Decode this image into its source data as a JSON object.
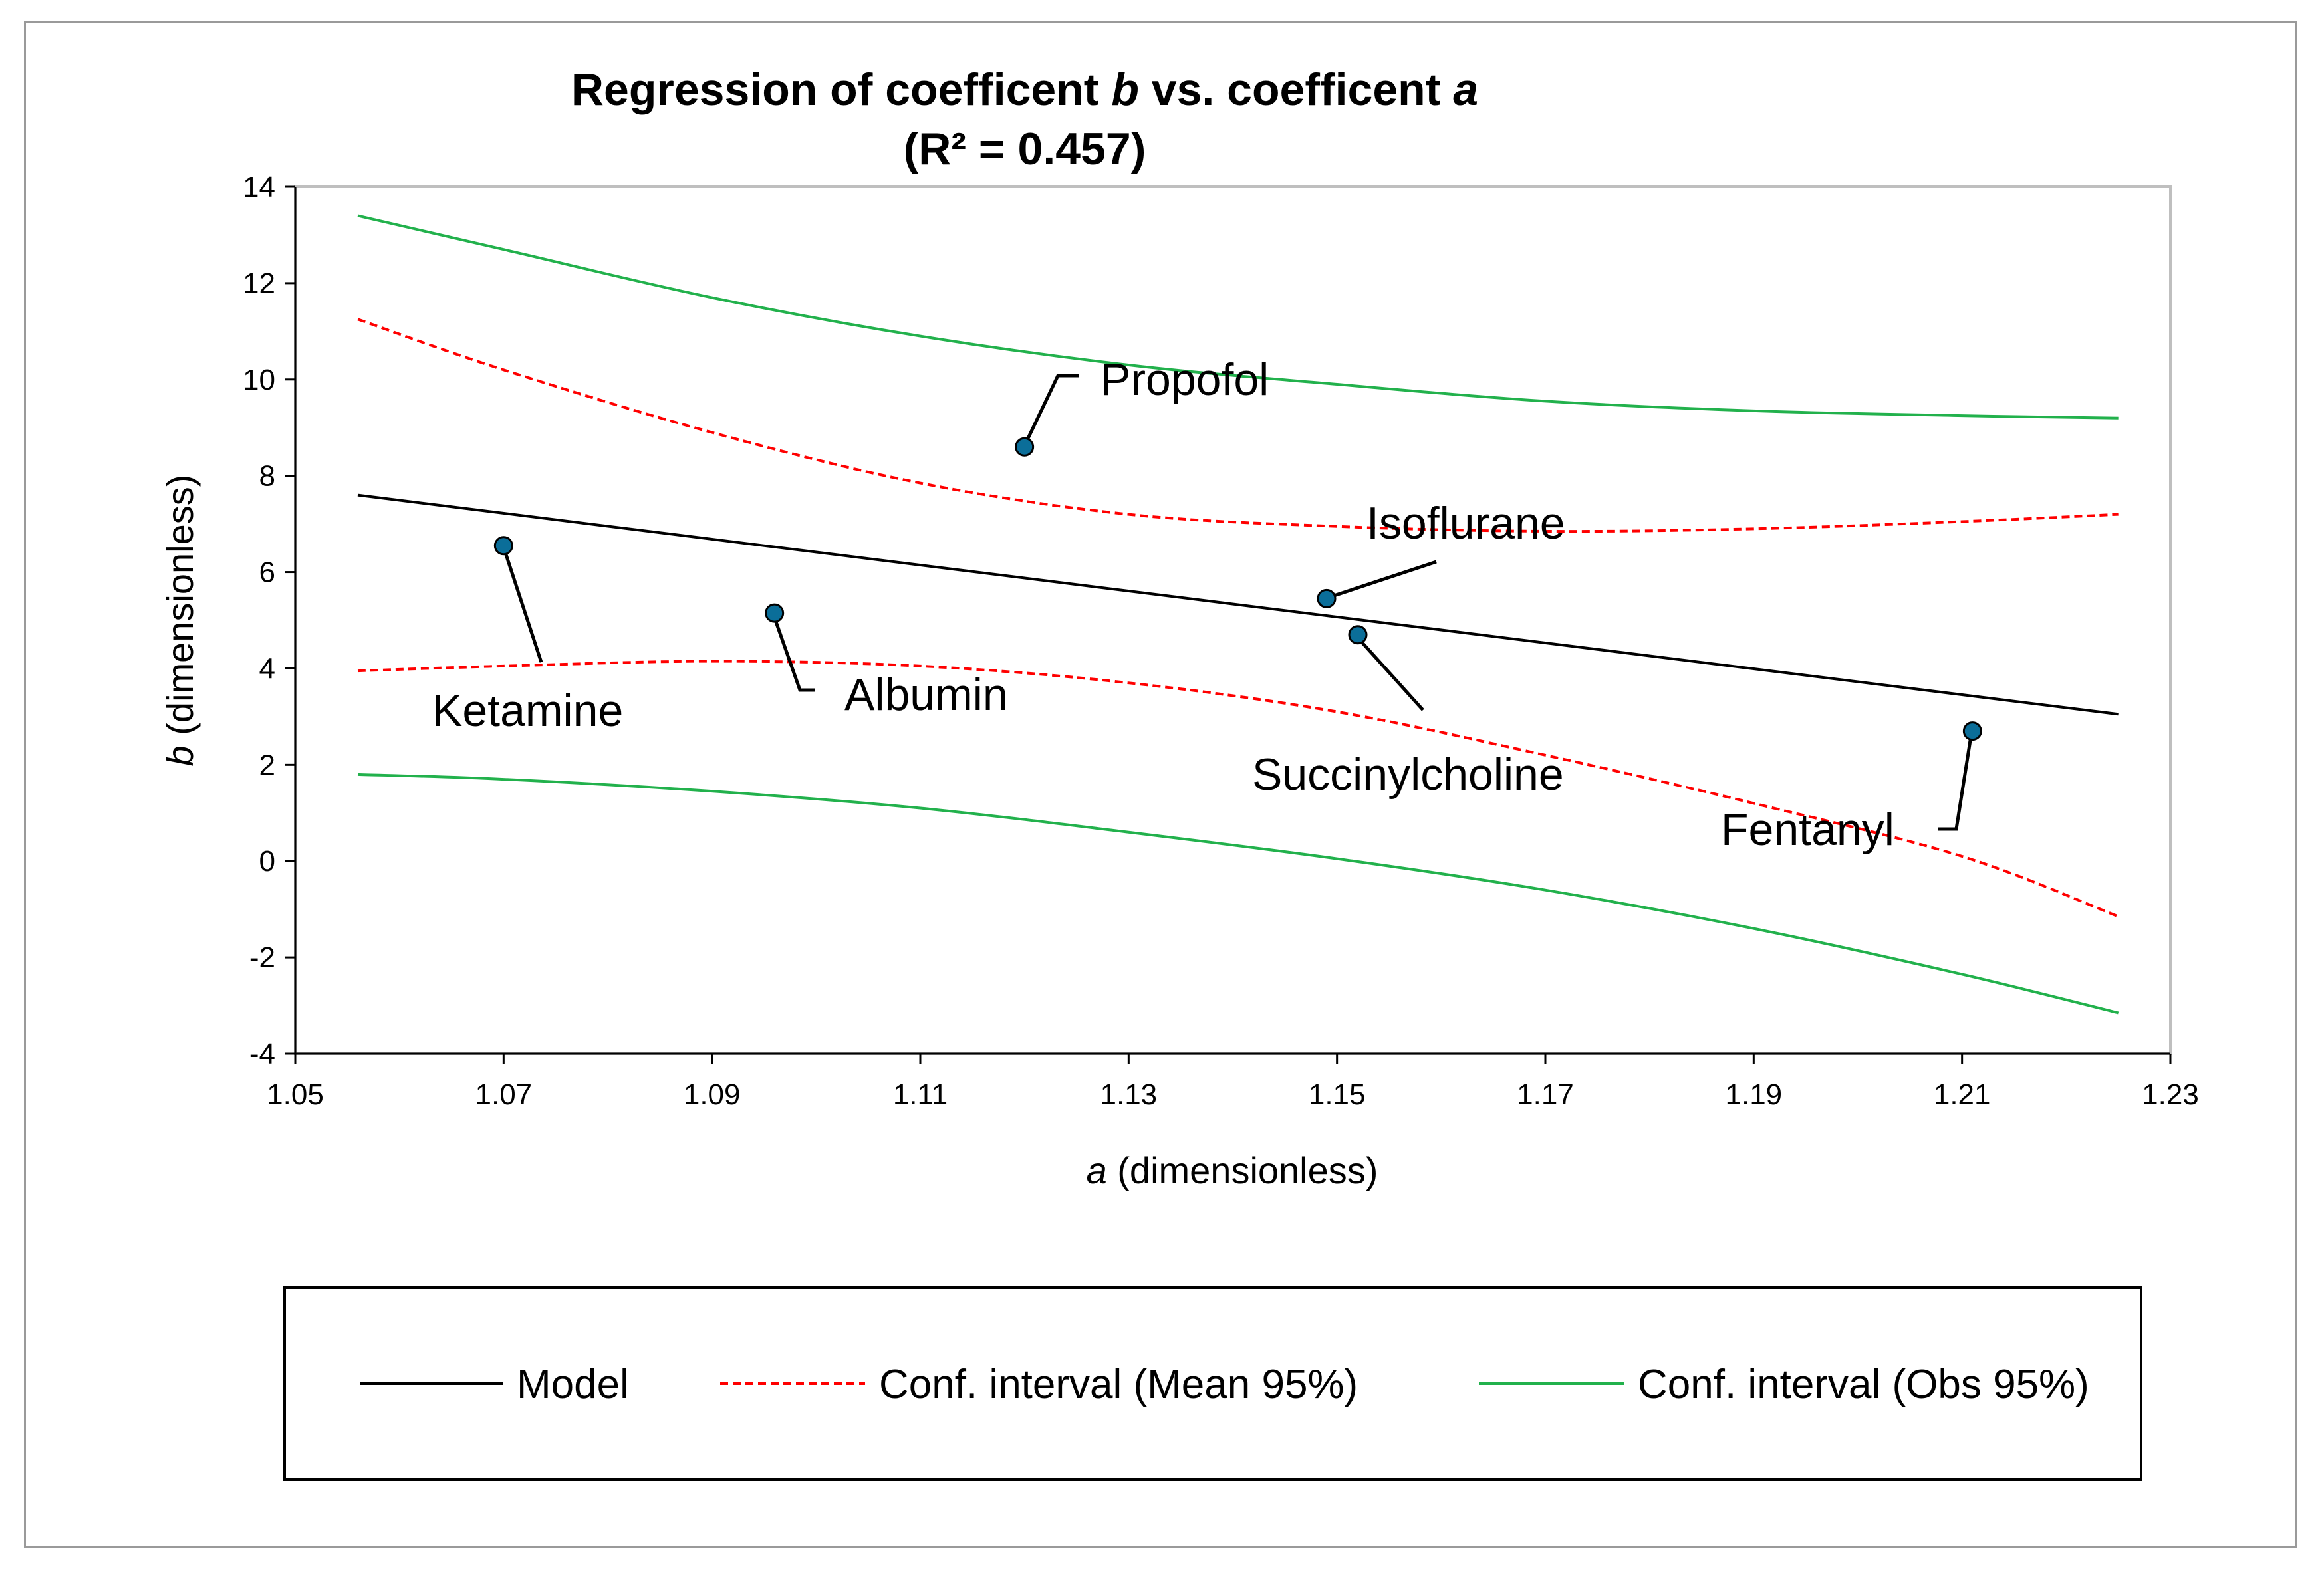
{
  "chart_data": {
    "type": "scatter",
    "title": "Regression of coefficent b vs. coefficent a",
    "title_parts": {
      "pre": "Regression of coefficent ",
      "var1": "b",
      "mid": " vs. coefficent ",
      "var2": "a"
    },
    "subtitle": "(R² = 0.457)",
    "xlabel": "a (dimensionless)",
    "xlabel_parts": {
      "var": "a",
      "rest": " (dimensionless)"
    },
    "ylabel": "b (dimensionless)",
    "ylabel_parts": {
      "var": "b",
      "rest": " (dimensionless)"
    },
    "xlim": [
      1.05,
      1.23
    ],
    "ylim": [
      -4,
      14
    ],
    "x_ticks": [
      "1.05",
      "1.07",
      "1.09",
      "1.11",
      "1.13",
      "1.15",
      "1.17",
      "1.19",
      "1.21",
      "1.23"
    ],
    "y_ticks": [
      "-4",
      "-2",
      "0",
      "2",
      "4",
      "6",
      "8",
      "10",
      "12",
      "14"
    ],
    "grid": false,
    "points": [
      {
        "name": "Ketamine",
        "x": 1.07,
        "y": 6.55
      },
      {
        "name": "Albumin",
        "x": 1.096,
        "y": 5.15
      },
      {
        "name": "Propofol",
        "x": 1.12,
        "y": 8.6
      },
      {
        "name": "Isoflurane",
        "x": 1.149,
        "y": 5.45
      },
      {
        "name": "Succinylcholine",
        "x": 1.152,
        "y": 4.7
      },
      {
        "name": "Fentanyl",
        "x": 1.211,
        "y": 2.7
      }
    ],
    "series": [
      {
        "name": "Model",
        "color": "#000000",
        "style": "solid",
        "x": [
          1.056,
          1.225
        ],
        "y": [
          7.6,
          3.05
        ]
      },
      {
        "name": "Conf. interval (Mean 95%)",
        "color": "#ff0000",
        "style": "dashed",
        "segments": [
          {
            "x": [
              1.056,
              1.07,
              1.09,
              1.11,
              1.13,
              1.15,
              1.17,
              1.19,
              1.21,
              1.225
            ],
            "y": [
              11.25,
              10.2,
              8.9,
              7.85,
              7.2,
              6.95,
              6.85,
              6.9,
              7.05,
              7.2
            ]
          },
          {
            "x": [
              1.056,
              1.07,
              1.09,
              1.11,
              1.13,
              1.15,
              1.17,
              1.19,
              1.21,
              1.225
            ],
            "y": [
              3.95,
              4.05,
              4.15,
              4.05,
              3.7,
              3.1,
              2.2,
              1.2,
              0.1,
              -1.15
            ]
          }
        ]
      },
      {
        "name": "Conf. interval (Obs 95%)",
        "color": "#22b14c",
        "style": "solid",
        "segments": [
          {
            "x": [
              1.056,
              1.07,
              1.09,
              1.11,
              1.13,
              1.15,
              1.17,
              1.19,
              1.21,
              1.225
            ],
            "y": [
              13.4,
              12.7,
              11.7,
              10.9,
              10.3,
              9.9,
              9.55,
              9.35,
              9.25,
              9.2
            ]
          },
          {
            "x": [
              1.056,
              1.07,
              1.09,
              1.11,
              1.13,
              1.15,
              1.17,
              1.19,
              1.21,
              1.225
            ],
            "y": [
              1.8,
              1.7,
              1.45,
              1.1,
              0.6,
              0.05,
              -0.6,
              -1.4,
              -2.35,
              -3.15
            ]
          }
        ]
      }
    ],
    "point_color": "#0b6e99",
    "legend_position": "bottom"
  }
}
